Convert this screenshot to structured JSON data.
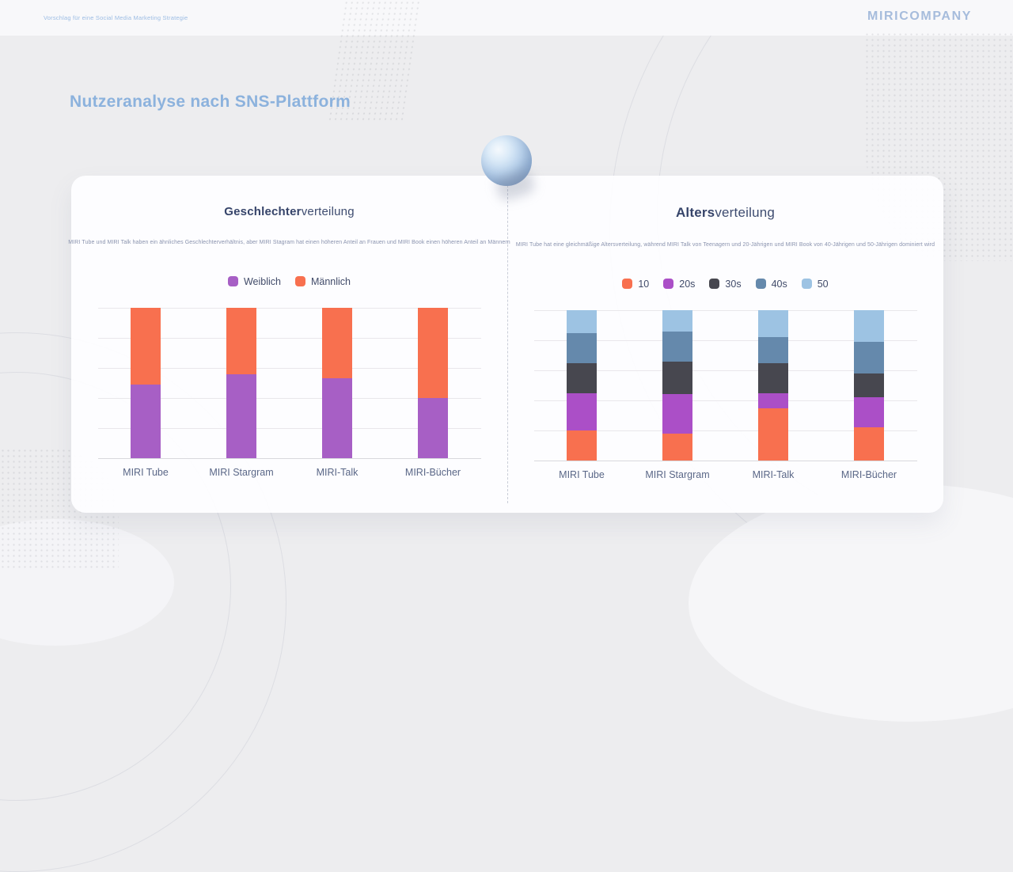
{
  "header": {
    "project_title": "Vorschlag für eine Social Media Marketing Strategie",
    "brand": "MIRICOMPANY"
  },
  "page": {
    "title": "Nutzeranalyse nach SNS-Plattform"
  },
  "panels": {
    "gender": {
      "title_bold": "Geschlechter",
      "title_rest": "verteilung",
      "description": "MIRI Tube und MIRI Talk haben ein ähnliches Geschlechterverhältnis, aber MIRI Stagram hat einen höheren Anteil an Frauen und MIRI Book einen höheren Anteil an Männern"
    },
    "age": {
      "title_bold": "Alters",
      "title_rest": "verteilung",
      "description": "MIRI Tube hat eine gleichmäßige Altersverteilung, während MIRI Talk von Teenagern und 20-Jährigen und MIRI Book von 40-Jährigen und 50-Jährigen dominiert wird"
    }
  },
  "chart_data": [
    {
      "type": "bar",
      "stacked": true,
      "title": "Geschlechterverteilung",
      "categories": [
        "MIRI Tube",
        "MIRI Stargram",
        "MIRI-Talk",
        "MIRI-Bücher"
      ],
      "series": [
        {
          "name": "Weiblich",
          "color": "#a75fc5",
          "values": [
            49,
            56,
            53,
            40
          ]
        },
        {
          "name": "Männlich",
          "color": "#f8704f",
          "values": [
            51,
            44,
            47,
            60
          ]
        }
      ],
      "ylim": [
        0,
        100
      ],
      "grid_step": 20,
      "grid": true,
      "legend_position": "top",
      "unit": "percent"
    },
    {
      "type": "bar",
      "stacked": true,
      "title": "Altersverteilung",
      "categories": [
        "MIRI Tube",
        "MIRI Stargram",
        "MIRI-Talk",
        "MIRI-Bücher"
      ],
      "series": [
        {
          "name": "10",
          "color": "#f8704f",
          "values": [
            20,
            18,
            35,
            22
          ]
        },
        {
          "name": "20s",
          "color": "#ab4fc7",
          "values": [
            25,
            26,
            10,
            20
          ]
        },
        {
          "name": "30s",
          "color": "#47474f",
          "values": [
            20,
            22,
            20,
            16
          ]
        },
        {
          "name": "40s",
          "color": "#6589ac",
          "values": [
            20,
            20,
            17,
            21
          ]
        },
        {
          "name": "50",
          "color": "#9dc3e3",
          "values": [
            15,
            14,
            18,
            21
          ]
        }
      ],
      "ylim": [
        0,
        100
      ],
      "grid_step": 20,
      "grid": true,
      "legend_position": "top",
      "unit": "percent"
    }
  ]
}
